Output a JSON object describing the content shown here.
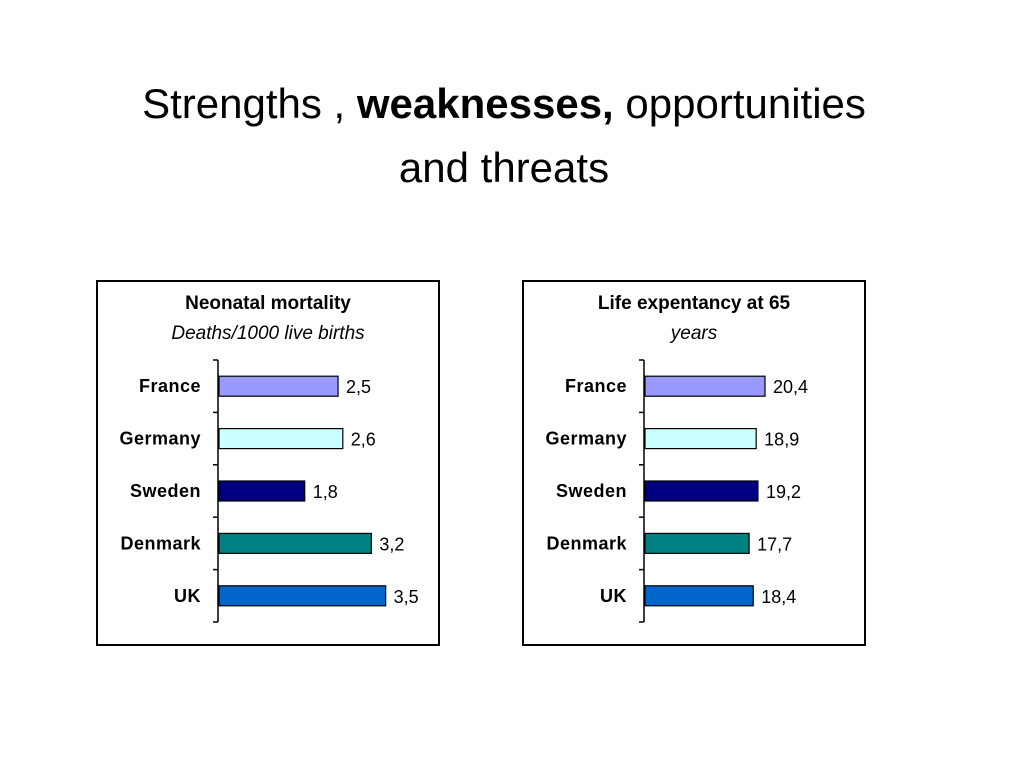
{
  "slide": {
    "title_part1": "Strengths , ",
    "title_bold": "weaknesses,",
    "title_part2": " opportunities",
    "title_line2": "and threats"
  },
  "chart_data": [
    {
      "type": "bar",
      "orientation": "horizontal",
      "title": "Neonatal mortality",
      "subtitle": "Deaths/1000 live births",
      "categories": [
        "France",
        "Germany",
        "Sweden",
        "Denmark",
        "UK"
      ],
      "values": [
        2.5,
        2.6,
        1.8,
        3.2,
        3.5
      ],
      "value_labels": [
        "2,5",
        "2,6",
        "1,8",
        "3,2",
        "3,5"
      ],
      "colors": [
        "#9999ff",
        "#ccffff",
        "#000080",
        "#008080",
        "#0066cc"
      ],
      "xlim": [
        0,
        4.2
      ],
      "grid": false
    },
    {
      "type": "bar",
      "orientation": "horizontal",
      "title": "Life expentancy at 65",
      "subtitle": "years",
      "categories": [
        "France",
        "Germany",
        "Sweden",
        "Denmark",
        "UK"
      ],
      "values": [
        20.4,
        18.9,
        19.2,
        17.7,
        18.4
      ],
      "value_labels": [
        "20,4",
        "18,9",
        "19,2",
        "17,7",
        "18,4"
      ],
      "colors": [
        "#9999ff",
        "#ccffff",
        "#000080",
        "#008080",
        "#0066cc"
      ],
      "xlim": [
        0,
        34
      ],
      "grid": false
    }
  ]
}
